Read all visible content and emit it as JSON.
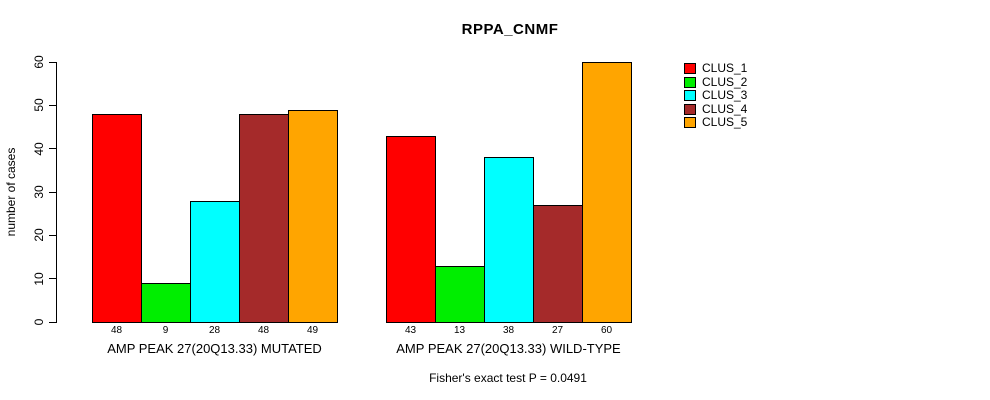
{
  "chart_data": {
    "type": "bar",
    "title": "RPPA_CNMF",
    "ylabel": "number of cases",
    "xlabel": "",
    "ylim": [
      0,
      60
    ],
    "yticks": [
      0,
      10,
      20,
      30,
      40,
      50,
      60
    ],
    "grid": false,
    "legend_position": "right",
    "series": [
      {
        "name": "CLUS_1",
        "color": "#FF0000"
      },
      {
        "name": "CLUS_2",
        "color": "#00EE00"
      },
      {
        "name": "CLUS_3",
        "color": "#00FFFF"
      },
      {
        "name": "CLUS_4",
        "color": "#A52A2A"
      },
      {
        "name": "CLUS_5",
        "color": "#FFA500"
      }
    ],
    "groups": [
      {
        "label": "AMP PEAK 27(20Q13.33) MUTATED",
        "values": [
          48,
          9,
          28,
          48,
          49
        ]
      },
      {
        "label": "AMP PEAK 27(20Q13.33) WILD-TYPE",
        "values": [
          43,
          13,
          38,
          27,
          60
        ]
      }
    ],
    "annotation": "Fisher's exact test P = 0.0491"
  }
}
